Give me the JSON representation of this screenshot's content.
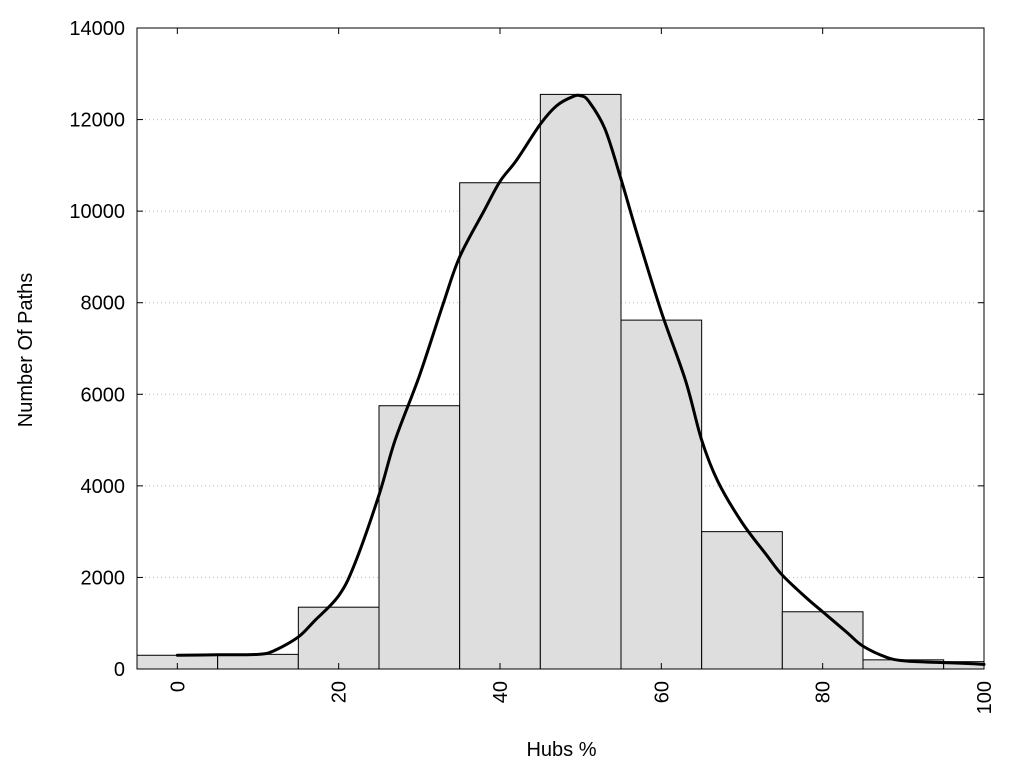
{
  "chart_data": {
    "type": "bar",
    "subtype": "histogram-with-density-curve",
    "xlabel": "Hubs %",
    "ylabel": "Number Of Paths",
    "xlim": [
      -5,
      100
    ],
    "ylim": [
      0,
      14000
    ],
    "x_ticks": [
      0,
      20,
      40,
      60,
      80,
      100
    ],
    "y_ticks": [
      0,
      2000,
      4000,
      6000,
      8000,
      10000,
      12000,
      14000
    ],
    "grid": "horizontal-dotted",
    "legend": "none",
    "bar_color": "#dedede",
    "bar_edge_color": "#000000",
    "curve_color": "#000000",
    "bins": [
      {
        "x0": -5,
        "x1": 5,
        "value": 300
      },
      {
        "x0": 5,
        "x1": 15,
        "value": 320
      },
      {
        "x0": 15,
        "x1": 25,
        "value": 1350
      },
      {
        "x0": 25,
        "x1": 35,
        "value": 5750
      },
      {
        "x0": 35,
        "x1": 45,
        "value": 10620
      },
      {
        "x0": 45,
        "x1": 55,
        "value": 12550
      },
      {
        "x0": 55,
        "x1": 65,
        "value": 7620
      },
      {
        "x0": 65,
        "x1": 75,
        "value": 3000
      },
      {
        "x0": 75,
        "x1": 85,
        "value": 1250
      },
      {
        "x0": 85,
        "x1": 95,
        "value": 200
      },
      {
        "x0": 95,
        "x1": 100,
        "value": 160
      }
    ],
    "curve": {
      "x": [
        0,
        5,
        10,
        12,
        15,
        17,
        20,
        22,
        25,
        27,
        30,
        33,
        35,
        38,
        40,
        42,
        45,
        47,
        49,
        50,
        51,
        53,
        55,
        57,
        60,
        63,
        65,
        67,
        70,
        73,
        75,
        78,
        80,
        83,
        85,
        88,
        90,
        93,
        95,
        98,
        100
      ],
      "y": [
        300,
        310,
        320,
        400,
        700,
        1050,
        1600,
        2300,
        3800,
        5000,
        6400,
        8000,
        9000,
        10000,
        10650,
        11100,
        11900,
        12300,
        12500,
        12520,
        12400,
        11800,
        10700,
        9500,
        7800,
        6300,
        5000,
        4100,
        3200,
        2500,
        2050,
        1550,
        1250,
        800,
        500,
        250,
        180,
        150,
        140,
        120,
        100
      ]
    }
  }
}
